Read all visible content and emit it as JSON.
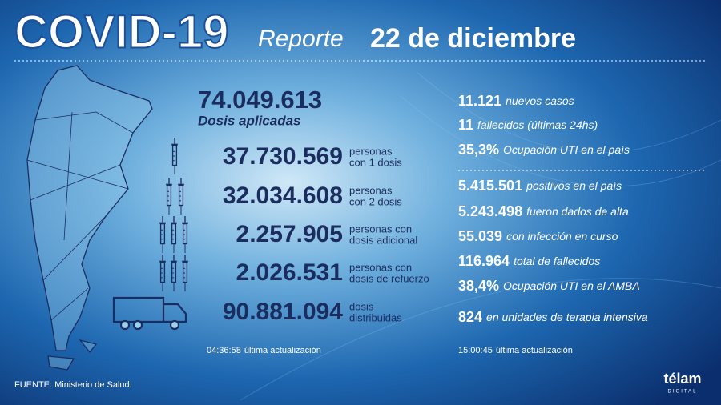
{
  "header": {
    "title": "COVID-19",
    "subtitle": "Reporte",
    "date": "22 de diciembre"
  },
  "vaccines": {
    "total": {
      "value": "74.049.613",
      "label": "Dosis aplicadas"
    },
    "rows": [
      {
        "value": "37.730.569",
        "label": [
          "personas",
          "con 1 dosis"
        ]
      },
      {
        "value": "32.034.608",
        "label": [
          "personas",
          "con 2 dosis"
        ]
      },
      {
        "value": "2.257.905",
        "label": [
          "personas con",
          "dosis adicional"
        ]
      },
      {
        "value": "2.026.531",
        "label": [
          "personas con",
          "dosis de refuerzo"
        ]
      },
      {
        "value": "90.881.094",
        "label": [
          "dosis",
          "distribuidas"
        ]
      }
    ],
    "update": {
      "time": "04:36:58",
      "label": "última actualización"
    }
  },
  "stats": {
    "daily": [
      {
        "value": "11.121",
        "label": "nuevos casos"
      },
      {
        "value": "11",
        "label": "fallecidos (últimas 24hs)"
      },
      {
        "value": "35,3%",
        "label": "Ocupación UTI en el país"
      }
    ],
    "totals": [
      {
        "value": "5.415.501",
        "label": "positivos en el país"
      },
      {
        "value": "5.243.498",
        "label": "fueron dados de alta"
      },
      {
        "value": "55.039",
        "label": "con infección en curso"
      },
      {
        "value": "116.964",
        "label": "total de fallecidos"
      },
      {
        "value": "38,4%",
        "label": "Ocupación UTI en el AMBA"
      },
      {
        "value": "824",
        "label": "en unidades de terapia intensiva"
      }
    ],
    "update": {
      "time": "15:00:45",
      "label": "última actualización"
    }
  },
  "footer": {
    "source": "FUENTE: Ministerio de Salud.",
    "logo": "télam",
    "logo_sub": "DIGITAL"
  }
}
